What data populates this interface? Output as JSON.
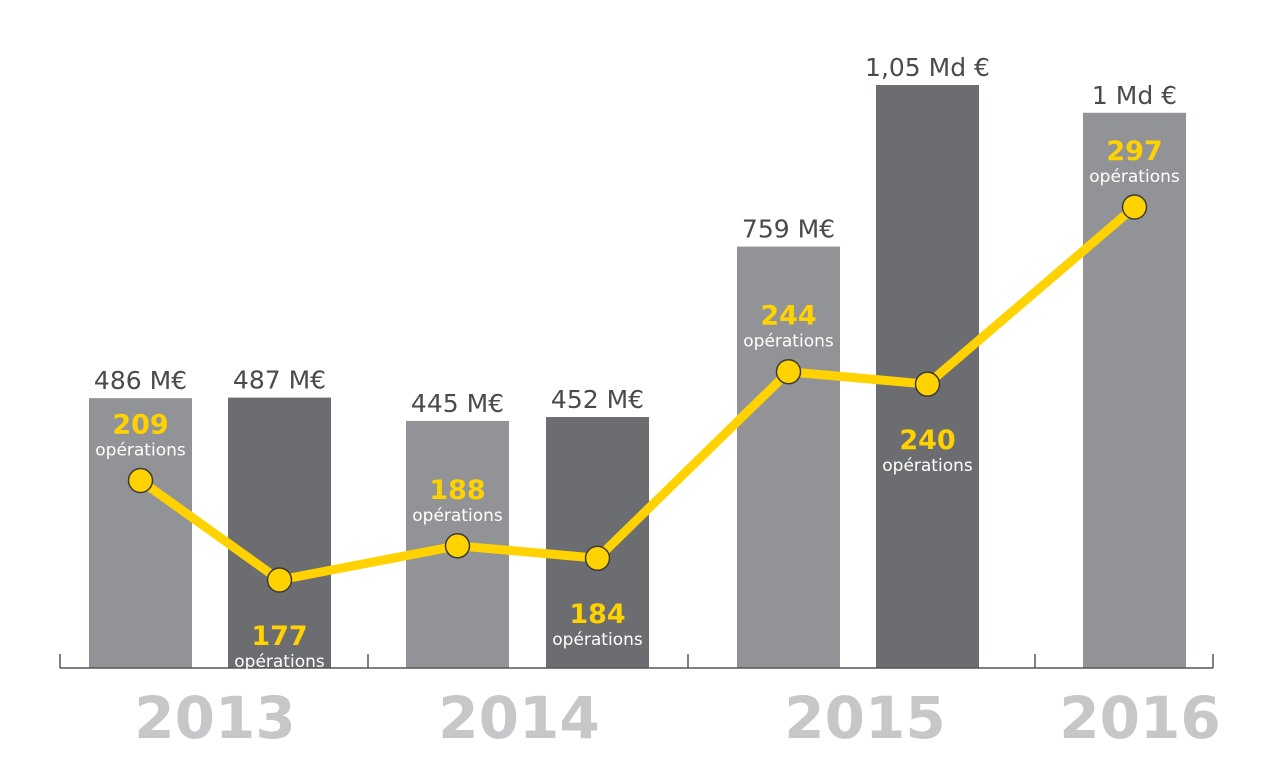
{
  "colors": {
    "light_bar": "#929396",
    "dark_bar": "#6c6d71",
    "line": "#ffd200",
    "axis": "#55565a",
    "year_text": "#c7c7c9"
  },
  "chart_data": {
    "type": "bar",
    "title": "",
    "xlabel": "",
    "ylabel": "",
    "grid": false,
    "years": [
      "2013",
      "2014",
      "2015",
      "2016"
    ],
    "bars": [
      {
        "year": "2013",
        "shade": "light",
        "value": 486,
        "label": "486 M€",
        "ops": 209,
        "ops_label": "opérations"
      },
      {
        "year": "2013",
        "shade": "dark",
        "value": 487,
        "label": "487 M€",
        "ops": 177,
        "ops_label": "opérations"
      },
      {
        "year": "2014",
        "shade": "light",
        "value": 445,
        "label": "445 M€",
        "ops": 188,
        "ops_label": "opérations"
      },
      {
        "year": "2014",
        "shade": "dark",
        "value": 452,
        "label": "452 M€",
        "ops": 184,
        "ops_label": "opérations"
      },
      {
        "year": "2015",
        "shade": "light",
        "value": 759,
        "label": "759 M€",
        "ops": 244,
        "ops_label": "opérations"
      },
      {
        "year": "2015",
        "shade": "dark",
        "value": 1050,
        "label": "1,05 Md €",
        "ops": 240,
        "ops_label": "opérations"
      },
      {
        "year": "2016",
        "shade": "light",
        "value": 1000,
        "label": "1 Md €",
        "ops": 297,
        "ops_label": "opérations"
      }
    ],
    "value_unit": "M€",
    "ylim": [
      0,
      1050
    ],
    "ops_range": [
      150,
      300
    ]
  }
}
